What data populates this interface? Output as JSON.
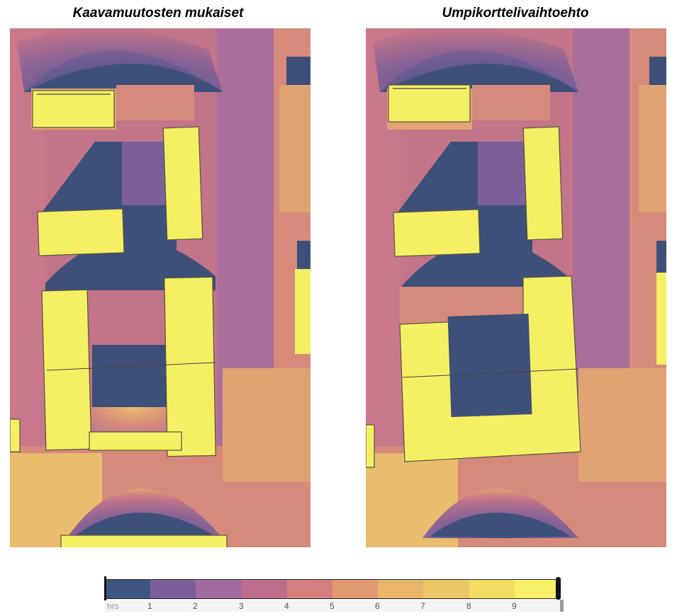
{
  "titles": {
    "left": "Kaavamuutosten mukaiset",
    "right": "Umpikorttelivaihtoehto"
  },
  "legend": {
    "unit": "hrs",
    "ticks": [
      "1",
      "2",
      "3",
      "4",
      "5",
      "6",
      "7",
      "8",
      "9"
    ],
    "colors": [
      "#3f5684",
      "#7a5f9b",
      "#a16aa0",
      "#bd6c8c",
      "#d47f7e",
      "#e19a72",
      "#e8b66b",
      "#ecc765",
      "#f3dc62",
      "#f7ef66"
    ]
  },
  "palette": {
    "building": "#f5ef63",
    "shadow": "#3e4f7a",
    "violet": "#7b5f98",
    "mauve": "#a96e9a",
    "rose": "#c27488",
    "salmon": "#d58a7c",
    "orange": "#e0a373",
    "amber": "#e9bc6e"
  },
  "panels": [
    {
      "id": "left",
      "layout": "scheme-plan"
    },
    {
      "id": "right",
      "layout": "closed-block"
    }
  ]
}
